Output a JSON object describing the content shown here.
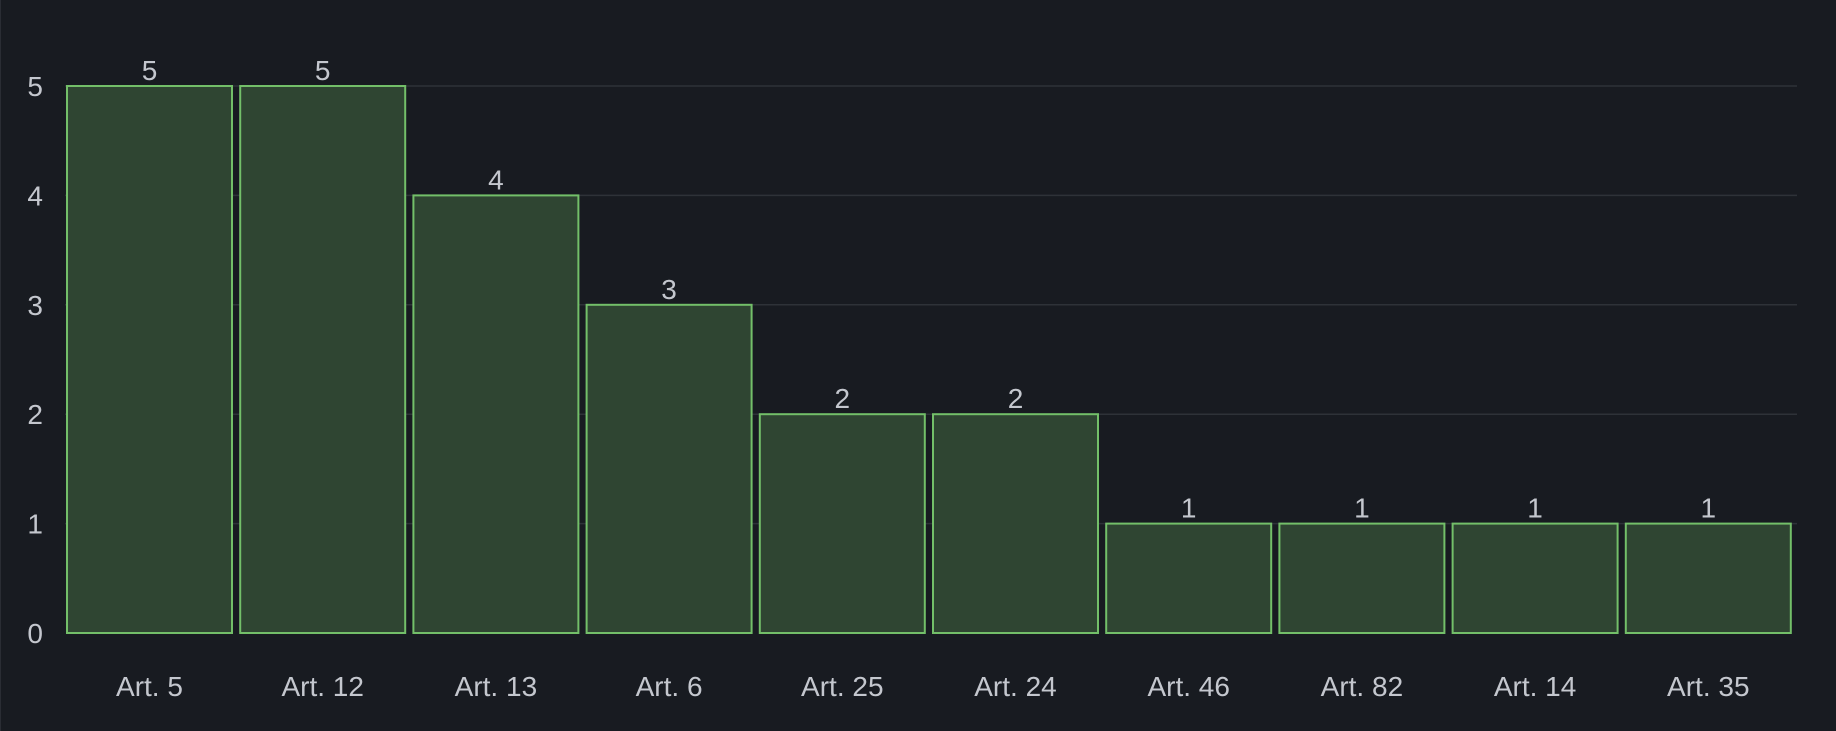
{
  "colors": {
    "background": "#181b21",
    "bar_fill": "#2f4532",
    "bar_stroke": "#73bf69",
    "text": "#c4c7ce",
    "grid": "#2e3238"
  },
  "chart_data": {
    "type": "bar",
    "title": "",
    "xlabel": "",
    "ylabel": "",
    "categories": [
      "Art. 5",
      "Art. 12",
      "Art. 13",
      "Art. 6",
      "Art. 25",
      "Art. 24",
      "Art. 46",
      "Art. 82",
      "Art. 14",
      "Art. 35"
    ],
    "values": [
      5,
      5,
      4,
      3,
      2,
      2,
      1,
      1,
      1,
      1
    ],
    "ylim": [
      0,
      5
    ],
    "yticks": [
      0,
      1,
      2,
      3,
      4,
      5
    ],
    "grid": true,
    "show_data_labels": true,
    "legend": "none"
  }
}
